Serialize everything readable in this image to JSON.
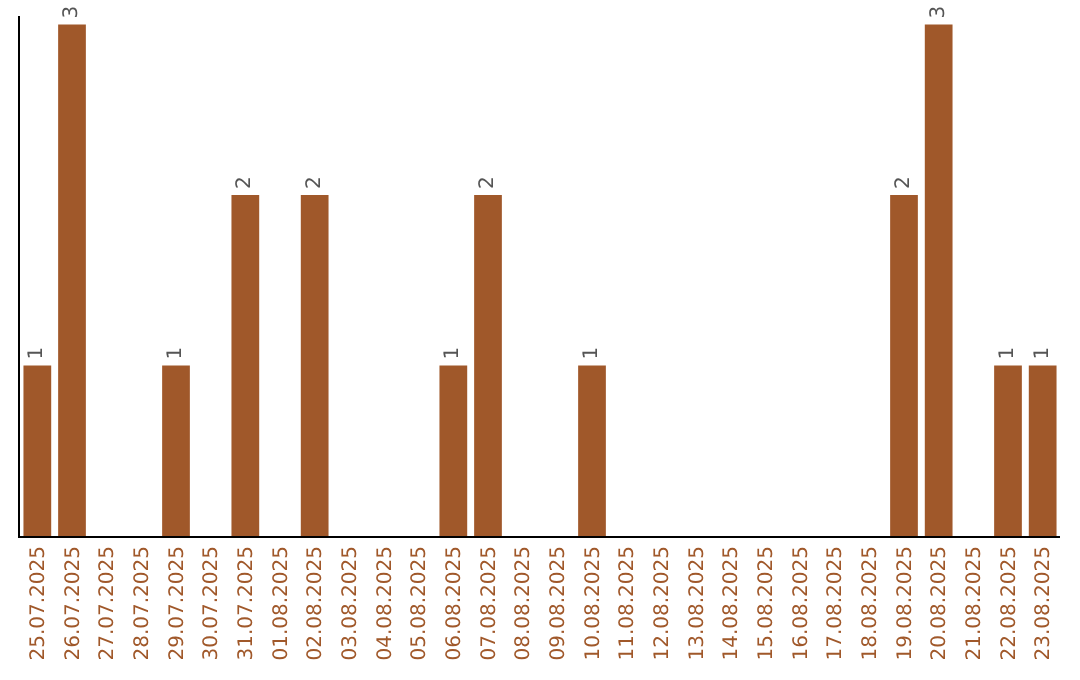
{
  "chart_data": {
    "type": "bar",
    "categories": [
      "25.07.2025",
      "26.07.2025",
      "27.07.2025",
      "28.07.2025",
      "29.07.2025",
      "30.07.2025",
      "31.07.2025",
      "01.08.2025",
      "02.08.2025",
      "03.08.2025",
      "04.08.2025",
      "05.08.2025",
      "06.08.2025",
      "07.08.2025",
      "08.08.2025",
      "09.08.2025",
      "10.08.2025",
      "11.08.2025",
      "12.08.2025",
      "13.08.2025",
      "14.08.2025",
      "15.08.2025",
      "16.08.2025",
      "17.08.2025",
      "18.08.2025",
      "19.08.2025",
      "20.08.2025",
      "21.08.2025",
      "22.08.2025",
      "23.08.2025"
    ],
    "values": [
      1,
      3,
      0,
      0,
      1,
      0,
      2,
      0,
      2,
      0,
      0,
      0,
      1,
      2,
      0,
      0,
      1,
      0,
      0,
      0,
      0,
      0,
      0,
      0,
      0,
      2,
      3,
      0,
      1,
      1
    ],
    "value_labels": [
      "1",
      "3",
      null,
      null,
      "1",
      null,
      "2",
      null,
      "2",
      null,
      null,
      null,
      "1",
      "2",
      null,
      null,
      "1",
      null,
      null,
      null,
      null,
      null,
      null,
      null,
      null,
      "2",
      "3",
      null,
      "1",
      "1"
    ],
    "color": "#a0582a",
    "ylim": [
      0,
      3.05
    ],
    "tick_labels": "x",
    "legend": false
  }
}
